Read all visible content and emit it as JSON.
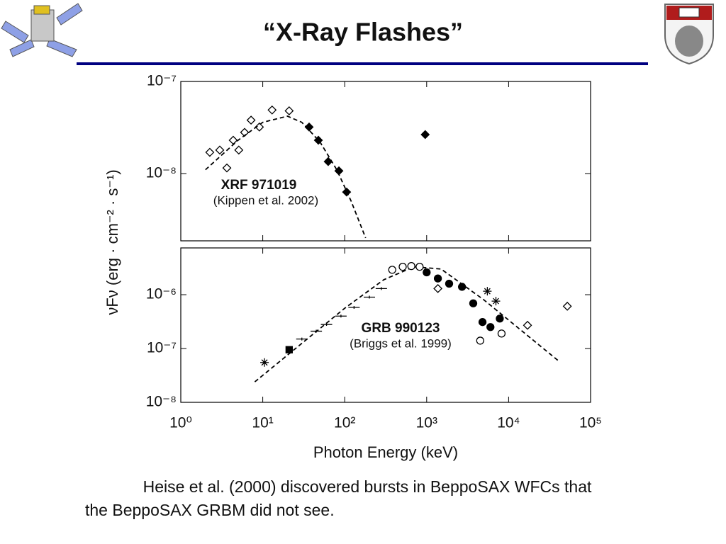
{
  "title": "“X-Ray Flashes”",
  "caption": [
    "Heise et al. (2000) discovered bursts in BeppoSAX WFCs that",
    "the  BeppoSAX GRBM did not see."
  ],
  "chart_data": [
    {
      "type": "scatter",
      "ylabel": "νFν  (erg · cm⁻² · s⁻¹)",
      "annotations": [
        "XRF 971019",
        "(Kippen et al. 2002)"
      ],
      "xscale": "log",
      "yscale": "log",
      "xlim": [
        1,
        100000
      ],
      "ylim": [
        1.86e-09,
        1e-07
      ],
      "xticks": [
        1,
        10,
        100,
        1000,
        10000,
        100000
      ],
      "yticks": [
        {
          "value": 1e-08,
          "label": "10⁻⁸"
        },
        {
          "value": 1e-07,
          "label": "10⁻⁷"
        }
      ],
      "series": [
        {
          "marker": "diamond-open",
          "color": "#000000",
          "x": [
            2.26,
            2.99,
            3.65,
            4.36,
            5.1,
            6.0,
            7.2,
            9.1,
            13,
            21
          ],
          "values": [
            1.7e-08,
            1.8e-08,
            1.15e-08,
            2.3e-08,
            1.8e-08,
            2.8e-08,
            3.8e-08,
            3.2e-08,
            4.9e-08,
            4.8e-08
          ]
        },
        {
          "marker": "diamond-filled",
          "color": "#000000",
          "x": [
            36.8,
            47.7,
            62.9,
            85,
            105.5,
            960
          ],
          "values": [
            3.2e-08,
            2.3e-08,
            1.35e-08,
            1.07e-08,
            6.3e-09,
            2.65e-08
          ]
        },
        {
          "line": "dashed",
          "color": "#000000",
          "x": [
            2,
            5,
            10,
            20,
            30,
            50,
            80,
            120,
            180
          ],
          "values": [
            1.1e-08,
            2.3e-08,
            3.6e-08,
            4.2e-08,
            3.6e-08,
            2.2e-08,
            1.1e-08,
            5e-09,
            2e-09
          ]
        }
      ]
    },
    {
      "type": "scatter",
      "xlabel": "Photon Energy (keV)",
      "annotations": [
        "GRB 990123",
        "(Briggs et al. 1999)"
      ],
      "xscale": "log",
      "yscale": "log",
      "xlim": [
        1,
        100000
      ],
      "ylim": [
        1e-08,
        7.4e-06
      ],
      "xticks": [
        {
          "value": 1,
          "label": "10⁰"
        },
        {
          "value": 10,
          "label": "10¹"
        },
        {
          "value": 100,
          "label": "10²"
        },
        {
          "value": 1000,
          "label": "10³"
        },
        {
          "value": 10000,
          "label": "10⁴"
        },
        {
          "value": 100000,
          "label": "10⁵"
        }
      ],
      "yticks": [
        {
          "value": 1e-08,
          "label": "10⁻⁸"
        },
        {
          "value": 1e-07,
          "label": "10⁻⁷"
        },
        {
          "value": 1e-06,
          "label": "10⁻⁶"
        }
      ],
      "series": [
        {
          "line": "dashed",
          "color": "#000000",
          "x": [
            8,
            100,
            300,
            700,
            1500,
            5000,
            40000
          ],
          "values": [
            2.4e-08,
            5.6e-07,
            1.9e-06,
            3.3e-06,
            3e-06,
            8e-07,
            6e-08
          ]
        },
        {
          "marker": "dash",
          "color": "#000000",
          "x": [
            30,
            45,
            60,
            90,
            130,
            200,
            280
          ],
          "values": [
            1.5e-07,
            2.1e-07,
            2.8e-07,
            4e-07,
            5.8e-07,
            9e-07,
            1.3e-06
          ]
        },
        {
          "marker": "circle-open",
          "color": "#000000",
          "x": [
            380,
            510,
            650,
            820,
            4500,
            8200
          ],
          "values": [
            2.9e-06,
            3.3e-06,
            3.4e-06,
            3.3e-06,
            1.4e-07,
            1.9e-07
          ]
        },
        {
          "marker": "circle-filled",
          "color": "#000000",
          "x": [
            1000,
            1370,
            1880,
            2700,
            3700,
            4800,
            6000,
            7800
          ],
          "values": [
            2.6e-06,
            2e-06,
            1.6e-06,
            1.4e-06,
            6.9e-07,
            3.1e-07,
            2.5e-07,
            3.6e-07
          ]
        },
        {
          "marker": "square-filled",
          "color": "#000000",
          "x": [
            21
          ],
          "values": [
            9.5e-08
          ]
        },
        {
          "marker": "diamond-open",
          "color": "#000000",
          "x": [
            1370,
            17000,
            52000
          ],
          "values": [
            1.3e-06,
            2.7e-07,
            6.1e-07
          ]
        },
        {
          "marker": "cross",
          "color": "#000000",
          "x": [
            10.5,
            5500,
            7000
          ],
          "values": [
            5.5e-08,
            1.16e-06,
            7.6e-07
          ]
        }
      ]
    }
  ]
}
